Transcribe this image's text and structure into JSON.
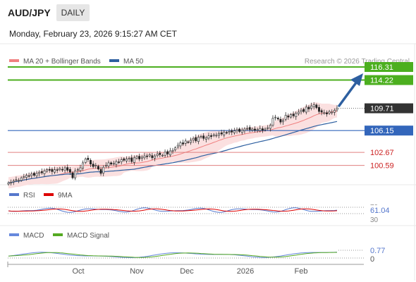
{
  "header": {
    "symbol": "AUD/JPY",
    "timeframe": "DAILY",
    "datetime": "Monday, February 23, 2026 9:15:27 AM CET"
  },
  "colors": {
    "resistance": "#4caf1f",
    "pivot": "#333333",
    "support_main": "#3366bb",
    "support": "#cc2222",
    "ma20": "#f08080",
    "ma50": "#2d5fa0",
    "rsi": "#5577cc",
    "rsi_ma": "#dd0000",
    "macd": "#6688dd",
    "macd_signal": "#55aa22",
    "arrow": "#2d5fa0"
  },
  "legend": {
    "ma20": "MA 20 + Bollinger Bands",
    "ma50": "MA 50",
    "credit": "Research © 2026 Trading Central"
  },
  "levels": [
    {
      "kind": "resistance",
      "value": "116.31"
    },
    {
      "kind": "resistance",
      "value": "114.22"
    },
    {
      "kind": "pivot",
      "value": "109.71"
    },
    {
      "kind": "support_main",
      "value": "106.15"
    },
    {
      "kind": "support",
      "value": "102.67"
    },
    {
      "kind": "support",
      "value": "100.59"
    }
  ],
  "rsi": {
    "label": "RSI",
    "ma_label": "9MA",
    "value": "61.04",
    "levels": [
      "70",
      "30"
    ]
  },
  "macd": {
    "label": "MACD",
    "signal_label": "MACD Signal",
    "value": "0.77",
    "zero": "0"
  },
  "x_axis": [
    "Oct",
    "Nov",
    "Dec",
    "2026",
    "Feb"
  ],
  "chart_data": {
    "type": "candlestick",
    "series": [
      {
        "name": "MA 20 + Bollinger Bands"
      },
      {
        "name": "MA 50"
      }
    ],
    "price_range": [
      97.5,
      118.0
    ],
    "closes": [
      97.8,
      97.9,
      98.1,
      98.3,
      98.2,
      98.6,
      98.8,
      99.0,
      98.9,
      99.2,
      99.0,
      99.3,
      99.5,
      99.4,
      99.7,
      99.9,
      99.8,
      99.6,
      99.9,
      99.8,
      100.1,
      99.9,
      100.2,
      99.8,
      99.5,
      98.6,
      99.7,
      99.9,
      100.2,
      101.0,
      101.6,
      101.5,
      100.8,
      100.4,
      100.6,
      100.0,
      99.3,
      100.3,
      100.6,
      101.0,
      100.8,
      100.9,
      101.2,
      101.1,
      101.5,
      101.4,
      101.6,
      101.7,
      101.2,
      101.8,
      102.0,
      101.6,
      101.9,
      102.1,
      102.0,
      102.3,
      101.8,
      102.1,
      102.4,
      102.3,
      102.2,
      102.7,
      102.4,
      102.9,
      103.0,
      103.4,
      103.8,
      104.2,
      104.0,
      104.5,
      104.3,
      104.6,
      104.9,
      104.5,
      105.1,
      105.2,
      104.9,
      105.0,
      105.3,
      105.2,
      105.5,
      105.4,
      105.7,
      105.6,
      105.9,
      105.8,
      106.0,
      105.9,
      106.1,
      106.3,
      106.0,
      106.2,
      106.4,
      106.5,
      106.3,
      106.4,
      106.2,
      106.3,
      106.5,
      106.2,
      106.4,
      106.6,
      107.0,
      108.1,
      108.3,
      108.0,
      107.5,
      107.8,
      108.6,
      108.3,
      108.7,
      108.5,
      108.9,
      109.1,
      109.4,
      109.2,
      109.9,
      109.6,
      110.1,
      110.3,
      109.8,
      109.2,
      109.1,
      109.0,
      108.8,
      109.2,
      109.1,
      109.4,
      109.7
    ]
  }
}
